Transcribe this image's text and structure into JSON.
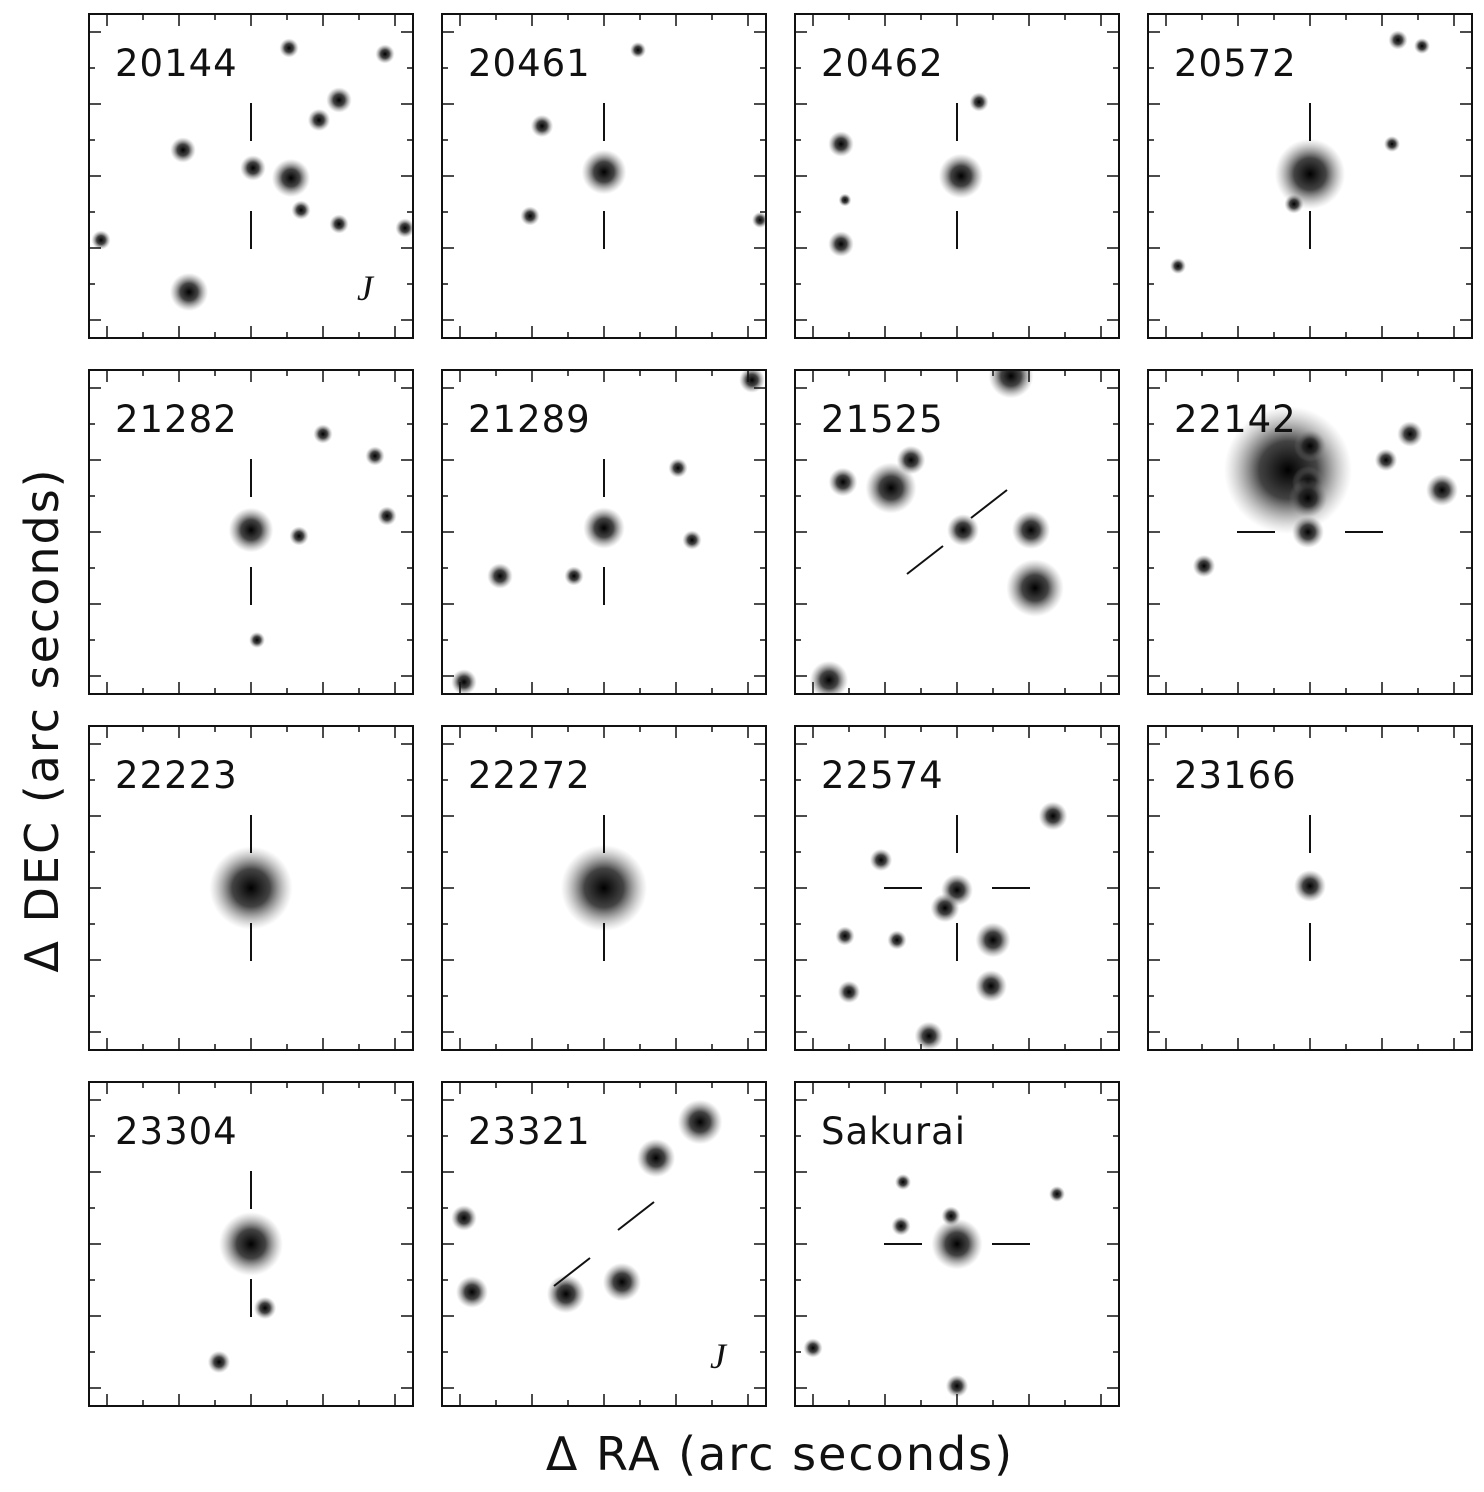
{
  "panels": [
    {
      "label": "20144",
      "filter": "J"
    },
    {
      "label": "20461"
    },
    {
      "label": "20462"
    },
    {
      "label": "20572"
    },
    {
      "label": "21282"
    },
    {
      "label": "21289"
    },
    {
      "label": "21525"
    },
    {
      "label": "22142"
    },
    {
      "label": "22223"
    },
    {
      "label": "22272"
    },
    {
      "label": "22574"
    },
    {
      "label": "23166"
    },
    {
      "label": "23304"
    },
    {
      "label": "23321",
      "filter": "J"
    },
    {
      "label": "Sakurai"
    }
  ],
  "x_axis_label": "Δ RA (arc seconds)",
  "y_axis_label": "Δ DEC (arc seconds)"
}
